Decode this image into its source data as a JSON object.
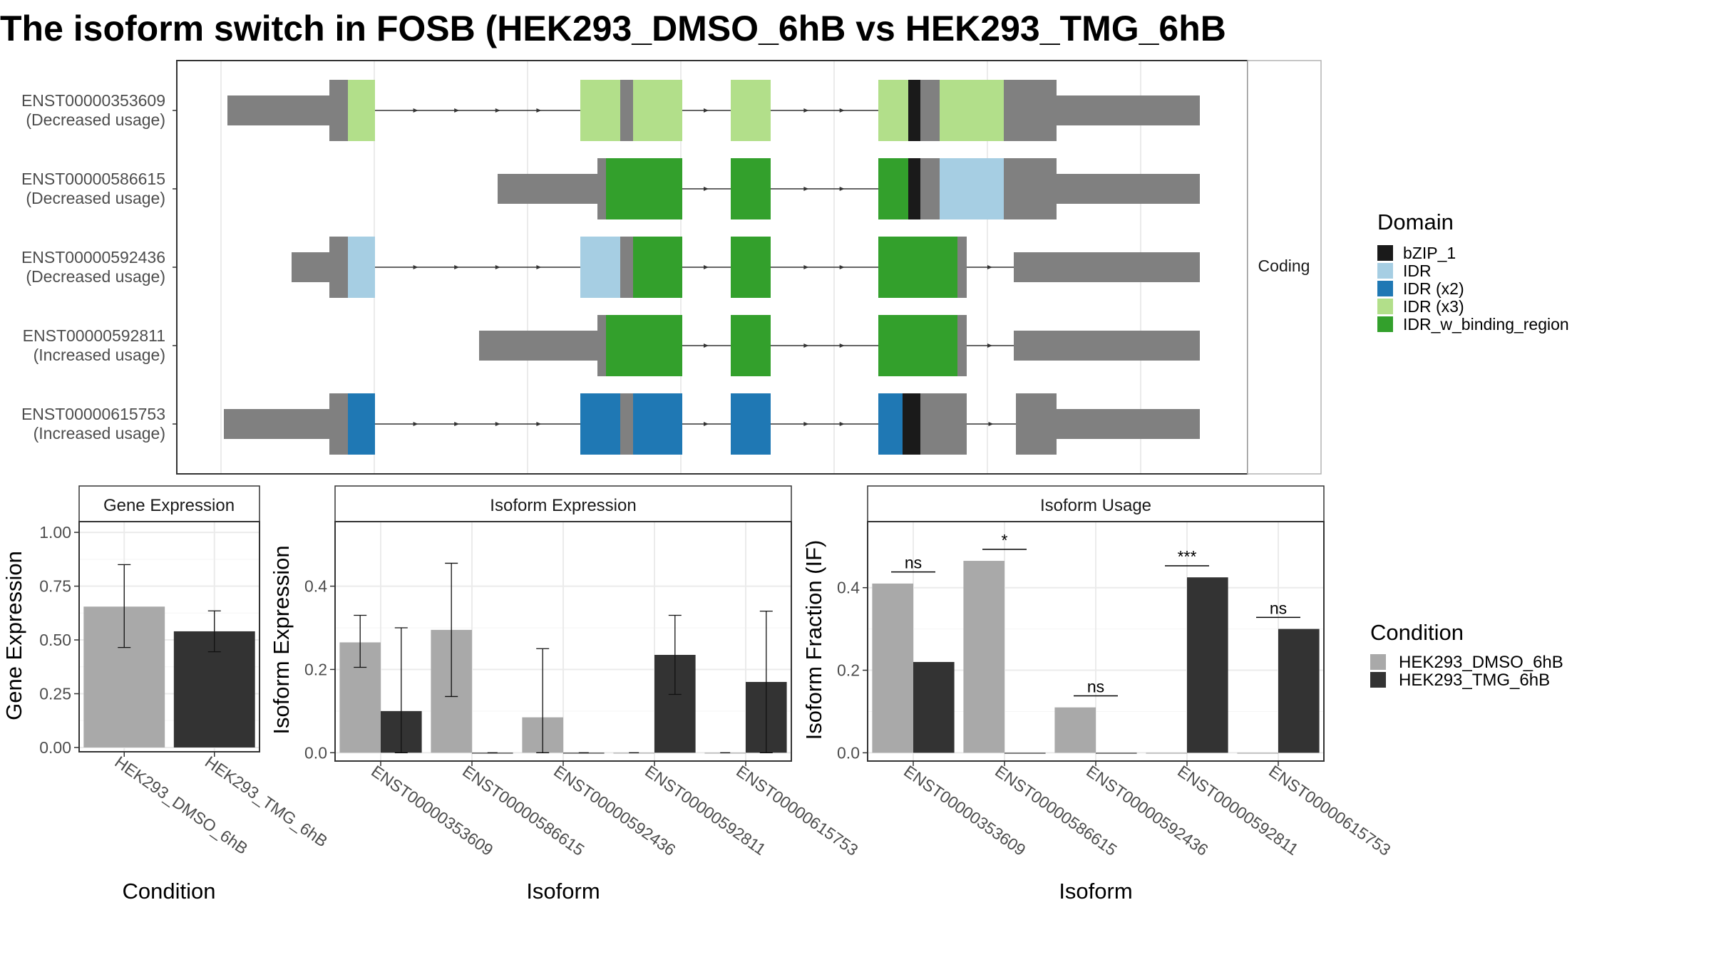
{
  "title": "The isoform switch in FOSB (HEK293_DMSO_6hB vs HEK293_TMG_6hB",
  "colors": {
    "bZIP_1": "#1a1a1a",
    "IDR": "#a6cee3",
    "IDR (x2)": "#1f78b4",
    "IDR (x3)": "#b2df8a",
    "IDR_w_binding_region": "#33a02c",
    "utr": "#808080",
    "dmso": "#a9a9a9",
    "tmg": "#333333"
  },
  "chart_data": [
    {
      "type": "isoform_structure",
      "facet_label": "Coding",
      "isoforms": [
        {
          "id": "ENST00000353609",
          "usage": "(Decreased usage)"
        },
        {
          "id": "ENST00000586615",
          "usage": "(Decreased usage)"
        },
        {
          "id": "ENST00000592436",
          "usage": "(Decreased usage)"
        },
        {
          "id": "ENST00000592811",
          "usage": "(Increased usage)"
        },
        {
          "id": "ENST00000615753",
          "usage": "(Increased usage)"
        }
      ],
      "legend_title": "Domain",
      "legend": [
        "bZIP_1",
        "IDR",
        "IDR (x2)",
        "IDR (x3)",
        "IDR_w_binding_region"
      ]
    },
    {
      "type": "bar",
      "title": "Gene Expression",
      "xlabel": "Condition",
      "ylabel": "Gene Expression",
      "categories": [
        "HEK293_DMSO_6hB",
        "HEK293_TMG_6hB"
      ],
      "values": [
        0.655,
        0.54
      ],
      "errors": [
        [
          0.465,
          0.85
        ],
        [
          0.445,
          0.635
        ]
      ],
      "ylim": [
        -0.02,
        1.05
      ],
      "yticks": [
        "0.00",
        "0.25",
        "0.50",
        "0.75",
        "1.00"
      ]
    },
    {
      "type": "bar",
      "title": "Isoform Expression",
      "xlabel": "Isoform",
      "ylabel": "Isoform Expression",
      "categories": [
        "ENST00000353609",
        "ENST00000586615",
        "ENST00000592436",
        "ENST00000592811",
        "ENST00000615753"
      ],
      "series": [
        {
          "name": "HEK293_DMSO_6hB",
          "values": [
            0.265,
            0.295,
            0.085,
            0.0,
            0.0
          ],
          "errors": [
            [
              0.205,
              0.33
            ],
            [
              0.135,
              0.455
            ],
            [
              0.0,
              0.25
            ],
            null,
            null
          ]
        },
        {
          "name": "HEK293_TMG_6hB",
          "values": [
            0.1,
            0.0,
            0.0,
            0.235,
            0.17
          ],
          "errors": [
            [
              0.0,
              0.3
            ],
            null,
            null,
            [
              0.14,
              0.33
            ],
            [
              0.0,
              0.34
            ]
          ]
        }
      ],
      "ylim": [
        -0.02,
        0.555
      ],
      "yticks": [
        "0.0",
        "0.2",
        "0.4"
      ]
    },
    {
      "type": "bar",
      "title": "Isoform Usage",
      "xlabel": "Isoform",
      "ylabel": "Isoform Fraction (IF)",
      "categories": [
        "ENST00000353609",
        "ENST00000586615",
        "ENST00000592436",
        "ENST00000592811",
        "ENST00000615753"
      ],
      "series": [
        {
          "name": "HEK293_DMSO_6hB",
          "values": [
            0.41,
            0.465,
            0.11,
            0.0,
            0.0
          ]
        },
        {
          "name": "HEK293_TMG_6hB",
          "values": [
            0.22,
            0.0,
            0.0,
            0.425,
            0.3
          ]
        }
      ],
      "significance": [
        "ns",
        "*",
        "ns",
        "***",
        "ns"
      ],
      "ylim": [
        -0.02,
        0.56
      ],
      "yticks": [
        "0.0",
        "0.2",
        "0.4"
      ]
    }
  ],
  "condition_legend": {
    "title": "Condition",
    "items": [
      "HEK293_DMSO_6hB",
      "HEK293_TMG_6hB"
    ]
  }
}
